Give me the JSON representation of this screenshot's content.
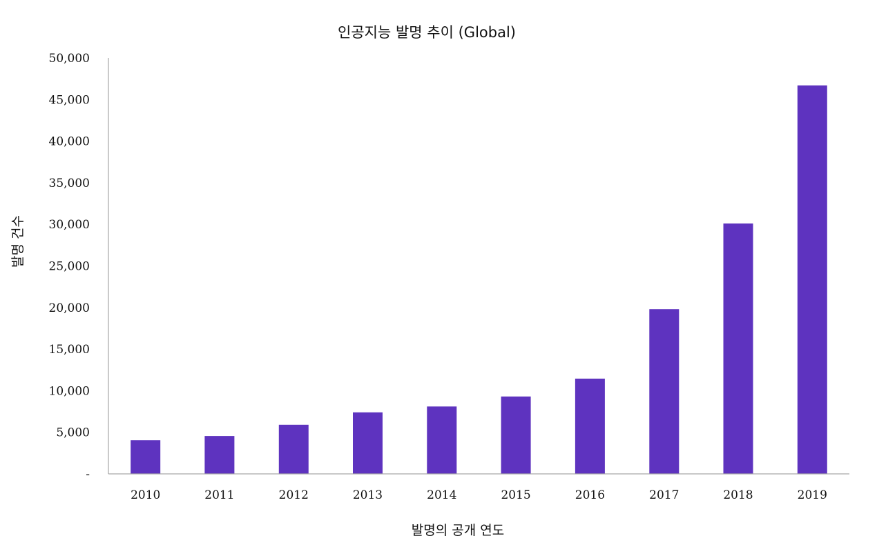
{
  "chart_data": {
    "type": "bar",
    "title": "인공지능 발명  추이 (Global)",
    "xlabel": "발명의 공개 연도",
    "ylabel": "발명 건수",
    "categories": [
      "2010",
      "2011",
      "2012",
      "2013",
      "2014",
      "2015",
      "2016",
      "2017",
      "2018",
      "2019"
    ],
    "values": [
      4050,
      4550,
      5900,
      7400,
      8100,
      9300,
      11450,
      19800,
      30100,
      46700
    ],
    "ylim": [
      0,
      50000
    ],
    "yticks": [
      0,
      5000,
      10000,
      15000,
      20000,
      25000,
      30000,
      35000,
      40000,
      45000,
      50000
    ],
    "ytick_labels": [
      "-",
      "5,000",
      "10,000",
      "15,000",
      "20,000",
      "25,000",
      "30,000",
      "35,000",
      "40,000",
      "45,000",
      "50,000"
    ],
    "bar_color": "#5e33bf",
    "axis_color": "#a6a6a6",
    "grid": false,
    "legend": "none"
  }
}
